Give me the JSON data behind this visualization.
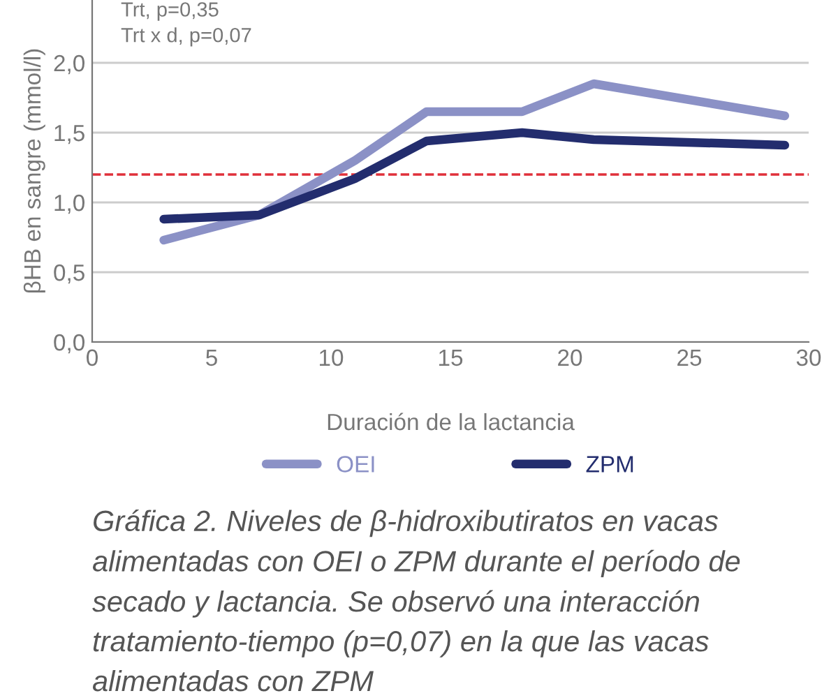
{
  "chart_data": {
    "type": "line",
    "xlabel": "Duración de la lactancia",
    "ylabel": "βHB en sangre (mmol/l)",
    "annotations": [
      "Trt, p=0,35",
      "Trt x d, p=0,07",
      "Gráfica 2. Niveles de β-hidroxibutiratos en vacas alimentadas con OEI o ZPM durante el período de secado y lactancia. Se observó una interacción tratamiento-tiempo (p=0,07) en la que las vacas alimentadas con ZPM"
    ],
    "x": [
      3,
      7,
      11,
      14,
      18,
      21,
      29
    ],
    "series": [
      {
        "name": "OEI",
        "color": "#8b91c6",
        "values": [
          0.73,
          0.91,
          1.3,
          1.65,
          1.65,
          1.85,
          1.62
        ]
      },
      {
        "name": "ZPM",
        "color": "#232d6e",
        "values": [
          0.88,
          0.91,
          1.17,
          1.44,
          1.5,
          1.45,
          1.41
        ]
      }
    ],
    "xlim": [
      0,
      30
    ],
    "xticks": [
      0,
      5,
      10,
      15,
      20,
      25,
      30
    ],
    "ylim": [
      0,
      2.45
    ],
    "yticks": [
      {
        "value": 0,
        "label": "0,0"
      },
      {
        "value": 0.5,
        "label": "0,5"
      },
      {
        "value": 1.0,
        "label": "1,0"
      },
      {
        "value": 1.5,
        "label": "1,5"
      },
      {
        "value": 2.0,
        "label": "2,0"
      }
    ],
    "ref_lines": [
      {
        "axis": "y",
        "value": 1.2,
        "color": "#e0303a",
        "line_style": "dashed"
      }
    ],
    "grid": "y",
    "legend": "bottom",
    "line_style": "solid",
    "marker": "none"
  }
}
